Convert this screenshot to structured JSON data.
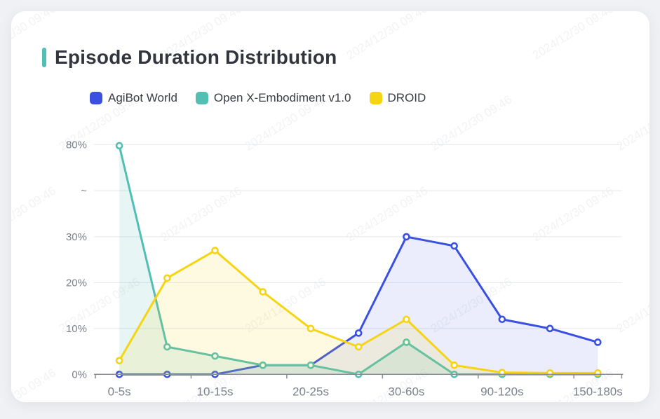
{
  "page": {
    "background": "#f0f1f4",
    "card_background": "#ffffff"
  },
  "header": {
    "title": "Episode Duration Distribution",
    "accent_color": "#4ec0b4"
  },
  "legend": {
    "items": [
      {
        "label": "AgiBot World",
        "color": "#3a50e0"
      },
      {
        "label": "Open X-Embodiment v1.0",
        "color": "#52bfb4"
      },
      {
        "label": "DROID",
        "color": "#f5d513"
      }
    ]
  },
  "watermark": {
    "text": "2024/12/30 09:46"
  },
  "chart_data": {
    "type": "line",
    "title": "Episode Duration Distribution",
    "categories": [
      "0-5s",
      "",
      "10-15s",
      "",
      "20-25s",
      "",
      "30-60s",
      "",
      "90-120s",
      "",
      "150-180s"
    ],
    "visible_xtick_labels": [
      "0-5s",
      "10-15s",
      "20-25s",
      "30-60s",
      "90-120s",
      "150-180s"
    ],
    "series": [
      {
        "name": "AgiBot World",
        "color": "#3a50e0",
        "fill": "rgba(58,80,224,0.10)",
        "values": [
          0,
          0,
          0,
          2,
          2,
          9,
          30,
          28,
          12,
          10,
          7
        ]
      },
      {
        "name": "Open X-Embodiment v1.0",
        "color": "#52bfb4",
        "fill": "rgba(82,191,180,0.14)",
        "values": [
          79.6,
          6,
          4,
          2,
          2,
          0,
          7,
          0,
          0,
          0,
          0
        ]
      },
      {
        "name": "DROID",
        "color": "#f5d513",
        "fill": "rgba(245,213,19,0.12)",
        "values": [
          3,
          21,
          27,
          18,
          10,
          6,
          12,
          2,
          0.4,
          0.3,
          0.3
        ]
      }
    ],
    "y_axis": {
      "unit": "%",
      "tick_labels": [
        "0%",
        "10%",
        "20%",
        "30%",
        "~",
        "80%"
      ],
      "tick_values": [
        0,
        10,
        20,
        30,
        null,
        80
      ],
      "break": {
        "from": 30,
        "to": 80
      },
      "grid": true
    },
    "legend_position": "top",
    "marker": "hollow-circle"
  }
}
